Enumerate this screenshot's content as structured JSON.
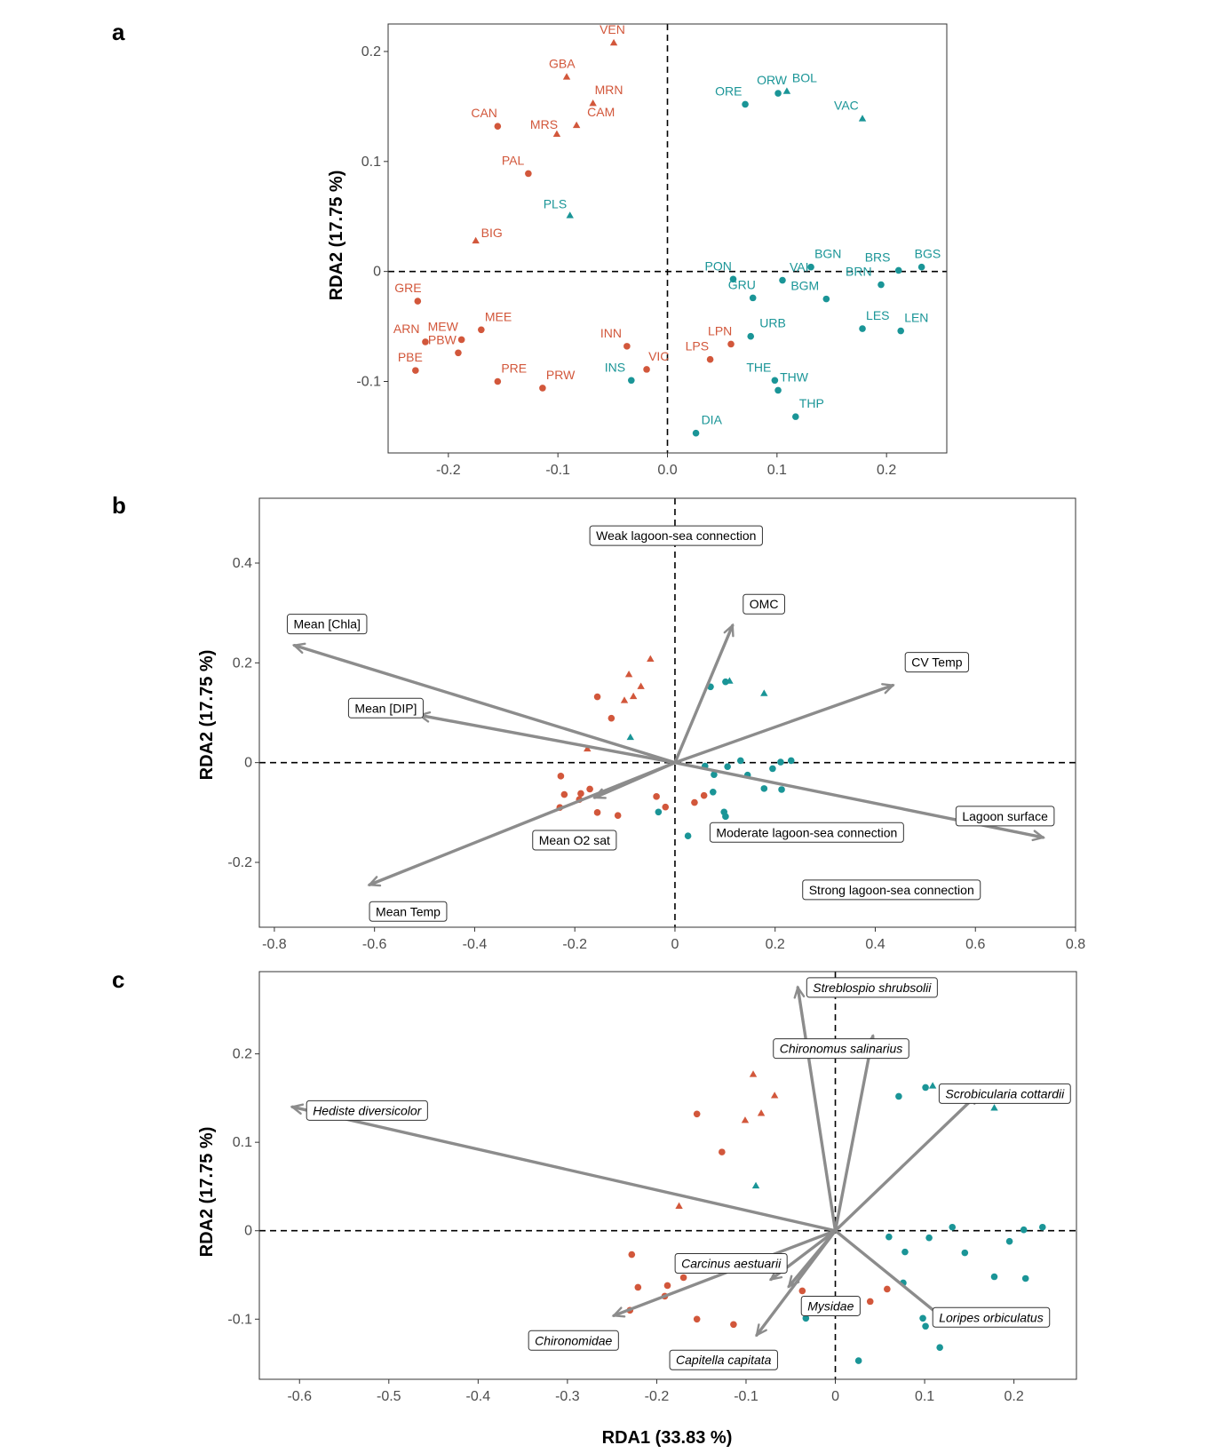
{
  "colors": {
    "group1": "#d2573b",
    "group2": "#1a9597",
    "arrow": "#8c8c8c"
  },
  "panels": {
    "a": {
      "letter": "a",
      "ylabel": "RDA2 (17.75 %)",
      "xticks": [
        "-0.2",
        "-0.1",
        "0.0",
        "0.1",
        "0.2"
      ],
      "yticks": [
        "-0.1",
        "0",
        "0.1",
        "0.2"
      ]
    },
    "b": {
      "letter": "b",
      "ylabel": "RDA2 (17.75 %)",
      "xticks": [
        "-0.8",
        "-0.6",
        "-0.4",
        "-0.2",
        "0",
        "0.2",
        "0.4",
        "0.6",
        "0.8"
      ],
      "yticks": [
        "-0.2",
        "0",
        "0.2",
        "0.4"
      ]
    },
    "c": {
      "letter": "c",
      "ylabel": "RDA2 (17.75 %)",
      "xlabel": "RDA1 (33.83 %)",
      "xticks": [
        "-0.6",
        "-0.5",
        "-0.4",
        "-0.3",
        "-0.2",
        "-0.1",
        "0",
        "0.1",
        "0.2"
      ],
      "yticks": [
        "-0.1",
        "0",
        "0.1",
        "0.2"
      ]
    }
  },
  "chart_data": [
    {
      "type": "scatter",
      "panel": "a",
      "xlabel": "",
      "ylabel": "RDA2 (17.75 %)",
      "xlim": [
        -0.255,
        0.255
      ],
      "ylim": [
        -0.165,
        0.225
      ],
      "legend": "none",
      "grid": false,
      "points": [
        {
          "label": "VEN",
          "x": -0.049,
          "y": 0.208,
          "group": 1,
          "shape": "triangle"
        },
        {
          "label": "GBA",
          "x": -0.092,
          "y": 0.177,
          "group": 1,
          "shape": "triangle"
        },
        {
          "label": "MRN",
          "x": -0.068,
          "y": 0.153,
          "group": 1,
          "shape": "triangle"
        },
        {
          "label": "CAM",
          "x": -0.083,
          "y": 0.133,
          "group": 1,
          "shape": "triangle"
        },
        {
          "label": "MRS",
          "x": -0.101,
          "y": 0.125,
          "group": 1,
          "shape": "triangle"
        },
        {
          "label": "CAN",
          "x": -0.155,
          "y": 0.132,
          "group": 1,
          "shape": "circle"
        },
        {
          "label": "PAL",
          "x": -0.127,
          "y": 0.089,
          "group": 1,
          "shape": "circle"
        },
        {
          "label": "BIG",
          "x": -0.175,
          "y": 0.028,
          "group": 1,
          "shape": "triangle"
        },
        {
          "label": "PLS",
          "x": -0.089,
          "y": 0.051,
          "group": 2,
          "shape": "triangle"
        },
        {
          "label": "BOL",
          "x": 0.109,
          "y": 0.164,
          "group": 2,
          "shape": "triangle"
        },
        {
          "label": "ORW",
          "x": 0.101,
          "y": 0.162,
          "group": 2,
          "shape": "circle"
        },
        {
          "label": "ORE",
          "x": 0.071,
          "y": 0.152,
          "group": 2,
          "shape": "circle"
        },
        {
          "label": "VAC",
          "x": 0.178,
          "y": 0.139,
          "group": 2,
          "shape": "triangle"
        },
        {
          "label": "BGN",
          "x": 0.131,
          "y": 0.004,
          "group": 2,
          "shape": "circle"
        },
        {
          "label": "BGS",
          "x": 0.232,
          "y": 0.004,
          "group": 2,
          "shape": "circle"
        },
        {
          "label": "BRS",
          "x": 0.211,
          "y": 0.001,
          "group": 2,
          "shape": "circle"
        },
        {
          "label": "PON",
          "x": 0.06,
          "y": -0.007,
          "group": 2,
          "shape": "circle"
        },
        {
          "label": "VAI",
          "x": 0.105,
          "y": -0.008,
          "group": 2,
          "shape": "circle"
        },
        {
          "label": "BRN",
          "x": 0.195,
          "y": -0.012,
          "group": 2,
          "shape": "circle"
        },
        {
          "label": "GRU",
          "x": 0.078,
          "y": -0.024,
          "group": 2,
          "shape": "circle"
        },
        {
          "label": "BGM",
          "x": 0.145,
          "y": -0.025,
          "group": 2,
          "shape": "circle"
        },
        {
          "label": "LES",
          "x": 0.178,
          "y": -0.052,
          "group": 2,
          "shape": "circle"
        },
        {
          "label": "LEN",
          "x": 0.213,
          "y": -0.054,
          "group": 2,
          "shape": "circle"
        },
        {
          "label": "URB",
          "x": 0.076,
          "y": -0.059,
          "group": 2,
          "shape": "circle"
        },
        {
          "label": "THE",
          "x": 0.098,
          "y": -0.099,
          "group": 2,
          "shape": "circle"
        },
        {
          "label": "THW",
          "x": 0.101,
          "y": -0.108,
          "group": 2,
          "shape": "circle"
        },
        {
          "label": "THP",
          "x": 0.117,
          "y": -0.132,
          "group": 2,
          "shape": "circle"
        },
        {
          "label": "DIA",
          "x": 0.026,
          "y": -0.147,
          "group": 2,
          "shape": "circle"
        },
        {
          "label": "INS",
          "x": -0.033,
          "y": -0.099,
          "group": 2,
          "shape": "circle"
        },
        {
          "label": "GRE",
          "x": -0.228,
          "y": -0.027,
          "group": 1,
          "shape": "circle"
        },
        {
          "label": "ARN",
          "x": -0.221,
          "y": -0.064,
          "group": 1,
          "shape": "circle"
        },
        {
          "label": "MEE",
          "x": -0.17,
          "y": -0.053,
          "group": 1,
          "shape": "circle"
        },
        {
          "label": "MEW",
          "x": -0.188,
          "y": -0.062,
          "group": 1,
          "shape": "circle"
        },
        {
          "label": "PBW",
          "x": -0.191,
          "y": -0.074,
          "group": 1,
          "shape": "circle"
        },
        {
          "label": "PBE",
          "x": -0.23,
          "y": -0.09,
          "group": 1,
          "shape": "circle"
        },
        {
          "label": "PRE",
          "x": -0.155,
          "y": -0.1,
          "group": 1,
          "shape": "circle"
        },
        {
          "label": "PRW",
          "x": -0.114,
          "y": -0.106,
          "group": 1,
          "shape": "circle"
        },
        {
          "label": "INN",
          "x": -0.037,
          "y": -0.068,
          "group": 1,
          "shape": "circle"
        },
        {
          "label": "VIC",
          "x": -0.019,
          "y": -0.089,
          "group": 1,
          "shape": "circle"
        },
        {
          "label": "LPN",
          "x": 0.058,
          "y": -0.066,
          "group": 1,
          "shape": "circle"
        },
        {
          "label": "LPS",
          "x": 0.039,
          "y": -0.08,
          "group": 1,
          "shape": "circle"
        }
      ]
    },
    {
      "type": "scatter",
      "panel": "b",
      "xlabel": "",
      "ylabel": "RDA2 (17.75 %)",
      "xlim": [
        -0.83,
        0.8
      ],
      "ylim": [
        -0.33,
        0.53
      ],
      "legend": "none",
      "grid": false,
      "vectors": [
        {
          "label": "Mean [Chla]",
          "x": -0.76,
          "y": 0.235
        },
        {
          "label": "Mean [DIP]",
          "x": -0.51,
          "y": 0.095
        },
        {
          "label": "Mean O2 sat",
          "x": -0.16,
          "y": -0.07
        },
        {
          "label": "Mean Temp",
          "x": -0.61,
          "y": -0.245
        },
        {
          "label": "OMC",
          "x": 0.115,
          "y": 0.275
        },
        {
          "label": "CV Temp",
          "x": 0.435,
          "y": 0.155
        },
        {
          "label": "Lagoon surface",
          "x": 0.735,
          "y": -0.15
        }
      ],
      "annotations": [
        {
          "text": "Weak lagoon-sea connection",
          "x": -0.17,
          "y": 0.455
        },
        {
          "text": "Moderate lagoon-sea connection",
          "x": 0.07,
          "y": -0.14
        },
        {
          "text": "Strong lagoon-sea connection",
          "x": 0.255,
          "y": -0.255
        }
      ],
      "points": [
        {
          "x": -0.049,
          "y": 0.208,
          "group": 1,
          "shape": "triangle"
        },
        {
          "x": -0.092,
          "y": 0.177,
          "group": 1,
          "shape": "triangle"
        },
        {
          "x": -0.068,
          "y": 0.153,
          "group": 1,
          "shape": "triangle"
        },
        {
          "x": -0.083,
          "y": 0.133,
          "group": 1,
          "shape": "triangle"
        },
        {
          "x": -0.101,
          "y": 0.125,
          "group": 1,
          "shape": "triangle"
        },
        {
          "x": -0.155,
          "y": 0.132,
          "group": 1,
          "shape": "circle"
        },
        {
          "x": -0.127,
          "y": 0.089,
          "group": 1,
          "shape": "circle"
        },
        {
          "x": -0.175,
          "y": 0.028,
          "group": 1,
          "shape": "triangle"
        },
        {
          "x": -0.089,
          "y": 0.051,
          "group": 2,
          "shape": "triangle"
        },
        {
          "x": 0.109,
          "y": 0.164,
          "group": 2,
          "shape": "triangle"
        },
        {
          "x": 0.101,
          "y": 0.162,
          "group": 2,
          "shape": "circle"
        },
        {
          "x": 0.071,
          "y": 0.152,
          "group": 2,
          "shape": "circle"
        },
        {
          "x": 0.178,
          "y": 0.139,
          "group": 2,
          "shape": "triangle"
        },
        {
          "x": 0.131,
          "y": 0.004,
          "group": 2,
          "shape": "circle"
        },
        {
          "x": 0.232,
          "y": 0.004,
          "group": 2,
          "shape": "circle"
        },
        {
          "x": 0.211,
          "y": 0.001,
          "group": 2,
          "shape": "circle"
        },
        {
          "x": 0.06,
          "y": -0.007,
          "group": 2,
          "shape": "circle"
        },
        {
          "x": 0.105,
          "y": -0.008,
          "group": 2,
          "shape": "circle"
        },
        {
          "x": 0.195,
          "y": -0.012,
          "group": 2,
          "shape": "circle"
        },
        {
          "x": 0.078,
          "y": -0.024,
          "group": 2,
          "shape": "circle"
        },
        {
          "x": 0.145,
          "y": -0.025,
          "group": 2,
          "shape": "circle"
        },
        {
          "x": 0.178,
          "y": -0.052,
          "group": 2,
          "shape": "circle"
        },
        {
          "x": 0.213,
          "y": -0.054,
          "group": 2,
          "shape": "circle"
        },
        {
          "x": 0.076,
          "y": -0.059,
          "group": 2,
          "shape": "circle"
        },
        {
          "x": 0.098,
          "y": -0.099,
          "group": 2,
          "shape": "circle"
        },
        {
          "x": 0.101,
          "y": -0.108,
          "group": 2,
          "shape": "circle"
        },
        {
          "x": 0.117,
          "y": -0.132,
          "group": 2,
          "shape": "circle"
        },
        {
          "x": 0.026,
          "y": -0.147,
          "group": 2,
          "shape": "circle"
        },
        {
          "x": -0.033,
          "y": -0.099,
          "group": 2,
          "shape": "circle"
        },
        {
          "x": -0.228,
          "y": -0.027,
          "group": 1,
          "shape": "circle"
        },
        {
          "x": -0.221,
          "y": -0.064,
          "group": 1,
          "shape": "circle"
        },
        {
          "x": -0.17,
          "y": -0.053,
          "group": 1,
          "shape": "circle"
        },
        {
          "x": -0.188,
          "y": -0.062,
          "group": 1,
          "shape": "circle"
        },
        {
          "x": -0.191,
          "y": -0.074,
          "group": 1,
          "shape": "circle"
        },
        {
          "x": -0.23,
          "y": -0.09,
          "group": 1,
          "shape": "circle"
        },
        {
          "x": -0.155,
          "y": -0.1,
          "group": 1,
          "shape": "circle"
        },
        {
          "x": -0.114,
          "y": -0.106,
          "group": 1,
          "shape": "circle"
        },
        {
          "x": -0.037,
          "y": -0.068,
          "group": 1,
          "shape": "circle"
        },
        {
          "x": -0.019,
          "y": -0.089,
          "group": 1,
          "shape": "circle"
        },
        {
          "x": 0.058,
          "y": -0.066,
          "group": 1,
          "shape": "circle"
        },
        {
          "x": 0.039,
          "y": -0.08,
          "group": 1,
          "shape": "circle"
        }
      ]
    },
    {
      "type": "scatter",
      "panel": "c",
      "xlabel": "RDA1 (33.83 %)",
      "ylabel": "RDA2 (17.75 %)",
      "xlim": [
        -0.645,
        0.27
      ],
      "ylim": [
        -0.168,
        0.293
      ],
      "legend": "none",
      "grid": false,
      "vectors": [
        {
          "label": "Streblospio shrubsolii",
          "x": -0.042,
          "y": 0.275
        },
        {
          "label": "Chironomus salinarius",
          "x": 0.042,
          "y": 0.22
        },
        {
          "label": "Scrobicularia cottardii",
          "x": 0.16,
          "y": 0.155
        },
        {
          "label": "Hediste diversicolor",
          "x": -0.608,
          "y": 0.14
        },
        {
          "label": "Carcinus aestuarii",
          "x": -0.072,
          "y": -0.055
        },
        {
          "label": "Chironomidae",
          "x": -0.248,
          "y": -0.096
        },
        {
          "label": "Capitella capitata",
          "x": -0.088,
          "y": -0.118
        },
        {
          "label": "Mysidae",
          "x": -0.052,
          "y": -0.063
        },
        {
          "label": "Loripes orbiculatus",
          "x": 0.127,
          "y": -0.104
        }
      ],
      "points": [
        {
          "x": -0.092,
          "y": 0.177,
          "group": 1,
          "shape": "triangle"
        },
        {
          "x": -0.068,
          "y": 0.153,
          "group": 1,
          "shape": "triangle"
        },
        {
          "x": -0.083,
          "y": 0.133,
          "group": 1,
          "shape": "triangle"
        },
        {
          "x": -0.101,
          "y": 0.125,
          "group": 1,
          "shape": "triangle"
        },
        {
          "x": -0.155,
          "y": 0.132,
          "group": 1,
          "shape": "circle"
        },
        {
          "x": -0.127,
          "y": 0.089,
          "group": 1,
          "shape": "circle"
        },
        {
          "x": -0.175,
          "y": 0.028,
          "group": 1,
          "shape": "triangle"
        },
        {
          "x": -0.089,
          "y": 0.051,
          "group": 2,
          "shape": "triangle"
        },
        {
          "x": 0.109,
          "y": 0.164,
          "group": 2,
          "shape": "triangle"
        },
        {
          "x": 0.101,
          "y": 0.162,
          "group": 2,
          "shape": "circle"
        },
        {
          "x": 0.071,
          "y": 0.152,
          "group": 2,
          "shape": "circle"
        },
        {
          "x": 0.178,
          "y": 0.139,
          "group": 2,
          "shape": "triangle"
        },
        {
          "x": 0.131,
          "y": 0.004,
          "group": 2,
          "shape": "circle"
        },
        {
          "x": 0.232,
          "y": 0.004,
          "group": 2,
          "shape": "circle"
        },
        {
          "x": 0.211,
          "y": 0.001,
          "group": 2,
          "shape": "circle"
        },
        {
          "x": 0.06,
          "y": -0.007,
          "group": 2,
          "shape": "circle"
        },
        {
          "x": 0.105,
          "y": -0.008,
          "group": 2,
          "shape": "circle"
        },
        {
          "x": 0.195,
          "y": -0.012,
          "group": 2,
          "shape": "circle"
        },
        {
          "x": 0.078,
          "y": -0.024,
          "group": 2,
          "shape": "circle"
        },
        {
          "x": 0.145,
          "y": -0.025,
          "group": 2,
          "shape": "circle"
        },
        {
          "x": 0.178,
          "y": -0.052,
          "group": 2,
          "shape": "circle"
        },
        {
          "x": 0.213,
          "y": -0.054,
          "group": 2,
          "shape": "circle"
        },
        {
          "x": 0.076,
          "y": -0.059,
          "group": 2,
          "shape": "circle"
        },
        {
          "x": 0.098,
          "y": -0.099,
          "group": 2,
          "shape": "circle"
        },
        {
          "x": 0.101,
          "y": -0.108,
          "group": 2,
          "shape": "circle"
        },
        {
          "x": 0.117,
          "y": -0.132,
          "group": 2,
          "shape": "circle"
        },
        {
          "x": 0.026,
          "y": -0.147,
          "group": 2,
          "shape": "circle"
        },
        {
          "x": -0.033,
          "y": -0.099,
          "group": 2,
          "shape": "circle"
        },
        {
          "x": -0.228,
          "y": -0.027,
          "group": 1,
          "shape": "circle"
        },
        {
          "x": -0.221,
          "y": -0.064,
          "group": 1,
          "shape": "circle"
        },
        {
          "x": -0.17,
          "y": -0.053,
          "group": 1,
          "shape": "circle"
        },
        {
          "x": -0.188,
          "y": -0.062,
          "group": 1,
          "shape": "circle"
        },
        {
          "x": -0.191,
          "y": -0.074,
          "group": 1,
          "shape": "circle"
        },
        {
          "x": -0.23,
          "y": -0.09,
          "group": 1,
          "shape": "circle"
        },
        {
          "x": -0.155,
          "y": -0.1,
          "group": 1,
          "shape": "circle"
        },
        {
          "x": -0.114,
          "y": -0.106,
          "group": 1,
          "shape": "circle"
        },
        {
          "x": -0.037,
          "y": -0.068,
          "group": 1,
          "shape": "circle"
        },
        {
          "x": -0.019,
          "y": -0.089,
          "group": 1,
          "shape": "circle"
        },
        {
          "x": 0.058,
          "y": -0.066,
          "group": 1,
          "shape": "circle"
        },
        {
          "x": 0.039,
          "y": -0.08,
          "group": 1,
          "shape": "circle"
        }
      ]
    }
  ]
}
